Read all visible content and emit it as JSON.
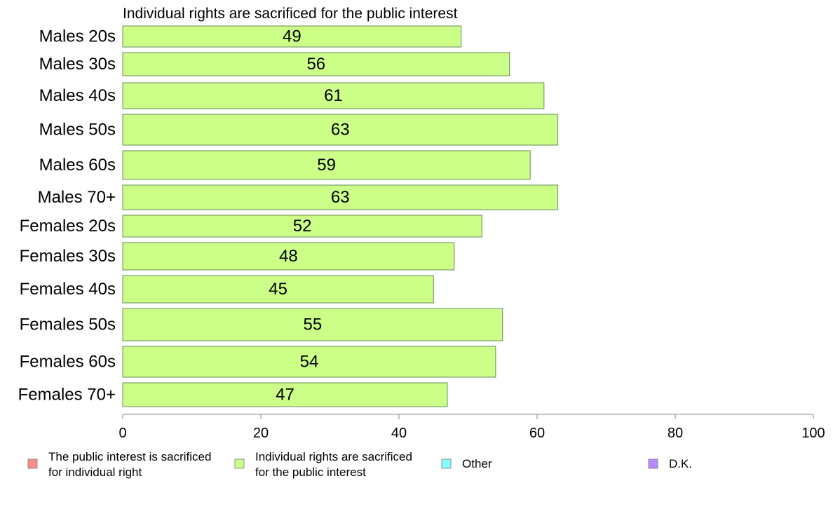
{
  "chart_data": {
    "type": "bar",
    "orientation": "horizontal",
    "title": "Individual rights are sacrificed for the public interest",
    "categories": [
      "Males 20s",
      "Males 30s",
      "Males 40s",
      "Males 50s",
      "Males 60s",
      "Males 70+",
      "Females 20s",
      "Females 30s",
      "Females 40s",
      "Females 50s",
      "Females 60s",
      "Females 70+"
    ],
    "series": [
      {
        "name": "Individual rights are sacrificed for the public interest",
        "values": [
          49,
          56,
          61,
          63,
          59,
          63,
          52,
          48,
          45,
          55,
          54,
          47
        ],
        "color": "#ccff88"
      }
    ],
    "xlim": [
      0,
      100
    ],
    "xticks": [
      0,
      20,
      40,
      60,
      80,
      100
    ],
    "grid": false,
    "legend_position": "bottom",
    "legend": [
      {
        "label_lines": [
          "The public interest is sacrificed",
          "for individual right"
        ],
        "color": "#ff8c8c"
      },
      {
        "label_lines": [
          "Individual rights are sacrificed",
          "for the public interest"
        ],
        "color": "#ccff88"
      },
      {
        "label_lines": [
          "Other"
        ],
        "color": "#88ffff"
      },
      {
        "label_lines": [
          "D.K."
        ],
        "color": "#bb88ff"
      }
    ]
  }
}
